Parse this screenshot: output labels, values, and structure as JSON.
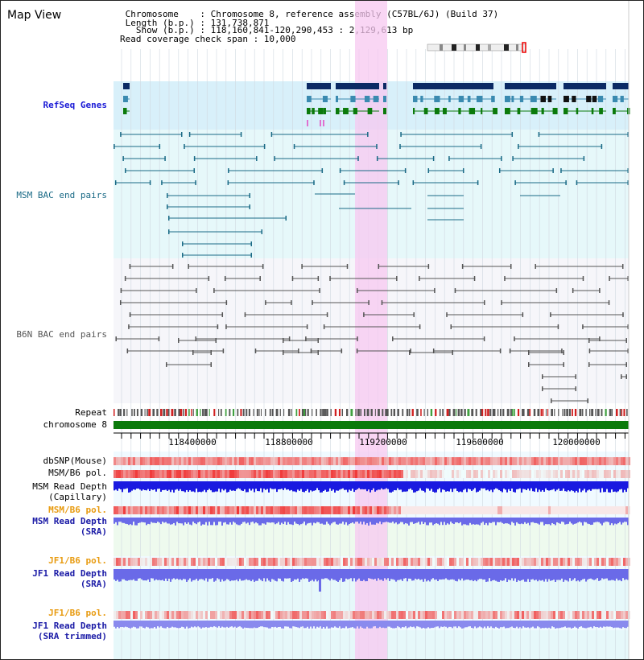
{
  "title": "Map View",
  "info": {
    "line1": " Chromosome    : Chromosome 8, reference assembly (C57BL/6J) (Build 37)",
    "line2": " Length (b.p.) : 131,738,871",
    "line3": "   Show (b.p.) : 118,160,841-120,290,453 : 2,129,613 bp",
    "line4": "Read coverage check span : 10,000"
  },
  "tracks": {
    "refseq": "RefSeq Genes",
    "msm_bac": "MSM BAC end pairs",
    "b6n_bac": "B6N BAC end pairs",
    "repeat": "Repeat",
    "chrom": "chromosome 8",
    "dbsnp": "dbSNP(Mouse)",
    "msm_b6_pol": "MSM/B6 pol.",
    "msm_read_depth_cap_1": "MSM Read Depth",
    "msm_read_depth_cap_2": "(Capillary)",
    "msm_b6_pol_sra": "MSM/B6 pol.",
    "msm_read_depth_sra_1": "MSM Read Depth",
    "msm_read_depth_sra_2": "(SRA)",
    "jf1_b6_pol": "JF1/B6 pol.",
    "jf1_read_depth_1": "JF1 Read Depth",
    "jf1_read_depth_2": "(SRA)",
    "jf1_b6_pol_trim": "JF1/B6 pol.",
    "jf1_read_depth_trim_1": "JF1 Read Depth",
    "jf1_read_depth_trim_2": "(SRA trimmed)"
  },
  "axis_labels": [
    "118400000",
    "118800000",
    "119200000",
    "119600000",
    "120000000"
  ],
  "colors": {
    "refseq_dark": "#0b2a64",
    "refseq_mid": "#3a8ab0",
    "refseq_green": "#0b7a0b",
    "msm_bac": "#1a6a86",
    "b6n_bac": "#555555",
    "chromosome": "#0b7a0b",
    "highlight": "#f7c8f0",
    "depth_blue": "#1a1ae0",
    "depth_light": "#6a6ae8"
  }
}
